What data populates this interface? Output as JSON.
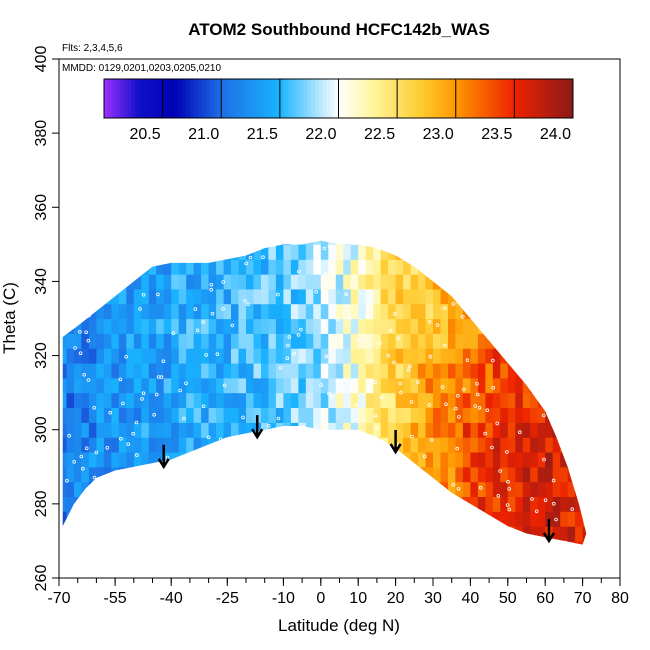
{
  "chart_data": {
    "type": "heatmap",
    "title": "ATOM2 Southbound HCFC142b_WAS",
    "subtitle_flights": "Flts: 2,3,4,5,6",
    "subtitle_dates": "MMDD: 0129,0201,0203,0205,0210",
    "xlabel": "Latitude (deg N)",
    "ylabel": "Theta (C)",
    "xlim": [
      -70,
      80
    ],
    "ylim": [
      260,
      400
    ],
    "x_ticks": [
      -70,
      -55,
      -40,
      -25,
      -10,
      0,
      10,
      20,
      30,
      40,
      50,
      60,
      70,
      80
    ],
    "x_tick_labels": [
      "-70",
      "-55",
      "-40",
      "-25",
      "-10",
      "0",
      "10",
      "20",
      "30",
      "40",
      "50",
      "60",
      "70",
      "80"
    ],
    "y_ticks": [
      260,
      280,
      300,
      320,
      340,
      360,
      380,
      400
    ],
    "y_tick_labels": [
      "260",
      "280",
      "300",
      "320",
      "340",
      "360",
      "380",
      "400"
    ],
    "colorbar": {
      "range": [
        20.0,
        24.0
      ],
      "ticks": [
        20.5,
        21.0,
        21.5,
        22.0,
        22.5,
        23.0,
        23.5,
        24.0
      ],
      "tick_labels": [
        "20.5",
        "21.0",
        "21.5",
        "22.0",
        "22.5",
        "23.0",
        "23.5",
        "24.0"
      ],
      "stops": [
        {
          "v": 20.0,
          "color": "#9b30ff"
        },
        {
          "v": 20.3,
          "color": "#1010c8"
        },
        {
          "v": 20.6,
          "color": "#0000b4"
        },
        {
          "v": 21.0,
          "color": "#1e6fe6"
        },
        {
          "v": 21.5,
          "color": "#19b4ff"
        },
        {
          "v": 22.0,
          "color": "#ffffff"
        },
        {
          "v": 22.3,
          "color": "#fff59a"
        },
        {
          "v": 22.7,
          "color": "#ffcc33"
        },
        {
          "v": 23.0,
          "color": "#ff9900"
        },
        {
          "v": 23.5,
          "color": "#ee2200"
        },
        {
          "v": 24.0,
          "color": "#8a1a1a"
        }
      ]
    },
    "field": {
      "boundary": [
        [
          -69,
          274
        ],
        [
          -66,
          280
        ],
        [
          -63,
          284
        ],
        [
          -60,
          287
        ],
        [
          -55,
          289
        ],
        [
          -50,
          290
        ],
        [
          -45,
          291
        ],
        [
          -40,
          292
        ],
        [
          -35,
          294
        ],
        [
          -30,
          296
        ],
        [
          -25,
          298
        ],
        [
          -20,
          299
        ],
        [
          -15,
          300
        ],
        [
          -10,
          301
        ],
        [
          -5,
          301
        ],
        [
          0,
          300
        ],
        [
          5,
          300
        ],
        [
          10,
          300
        ],
        [
          15,
          298
        ],
        [
          20,
          295
        ],
        [
          25,
          291
        ],
        [
          30,
          287
        ],
        [
          35,
          283
        ],
        [
          40,
          280
        ],
        [
          45,
          277
        ],
        [
          50,
          274
        ],
        [
          55,
          272
        ],
        [
          60,
          271
        ],
        [
          65,
          270
        ],
        [
          70,
          269
        ],
        [
          71,
          272
        ],
        [
          69,
          280
        ],
        [
          66,
          290
        ],
        [
          63,
          298
        ],
        [
          60,
          305
        ],
        [
          55,
          312
        ],
        [
          50,
          318
        ],
        [
          45,
          324
        ],
        [
          40,
          330
        ],
        [
          35,
          336
        ],
        [
          30,
          340
        ],
        [
          25,
          344
        ],
        [
          20,
          347
        ],
        [
          15,
          349
        ],
        [
          10,
          350
        ],
        [
          5,
          350
        ],
        [
          0,
          351
        ],
        [
          -5,
          350
        ],
        [
          -10,
          350
        ],
        [
          -15,
          349
        ],
        [
          -20,
          347
        ],
        [
          -25,
          346
        ],
        [
          -30,
          345
        ],
        [
          -35,
          345
        ],
        [
          -40,
          345
        ],
        [
          -45,
          344
        ],
        [
          -50,
          340
        ],
        [
          -55,
          336
        ],
        [
          -60,
          332
        ],
        [
          -65,
          328
        ],
        [
          -69,
          325
        ]
      ],
      "value_profile_lat": [
        -70,
        -55,
        -40,
        -25,
        -10,
        0,
        10,
        20,
        30,
        40,
        50,
        60,
        70
      ],
      "value_profile": [
        21.1,
        21.25,
        21.4,
        21.5,
        21.6,
        21.8,
        22.1,
        22.6,
        23.0,
        23.2,
        23.4,
        23.5,
        23.4
      ]
    },
    "markers": [
      {
        "lat": -42,
        "theta": 290
      },
      {
        "lat": -17,
        "theta": 298
      },
      {
        "lat": 20,
        "theta": 294
      },
      {
        "lat": 61,
        "theta": 270
      }
    ]
  }
}
